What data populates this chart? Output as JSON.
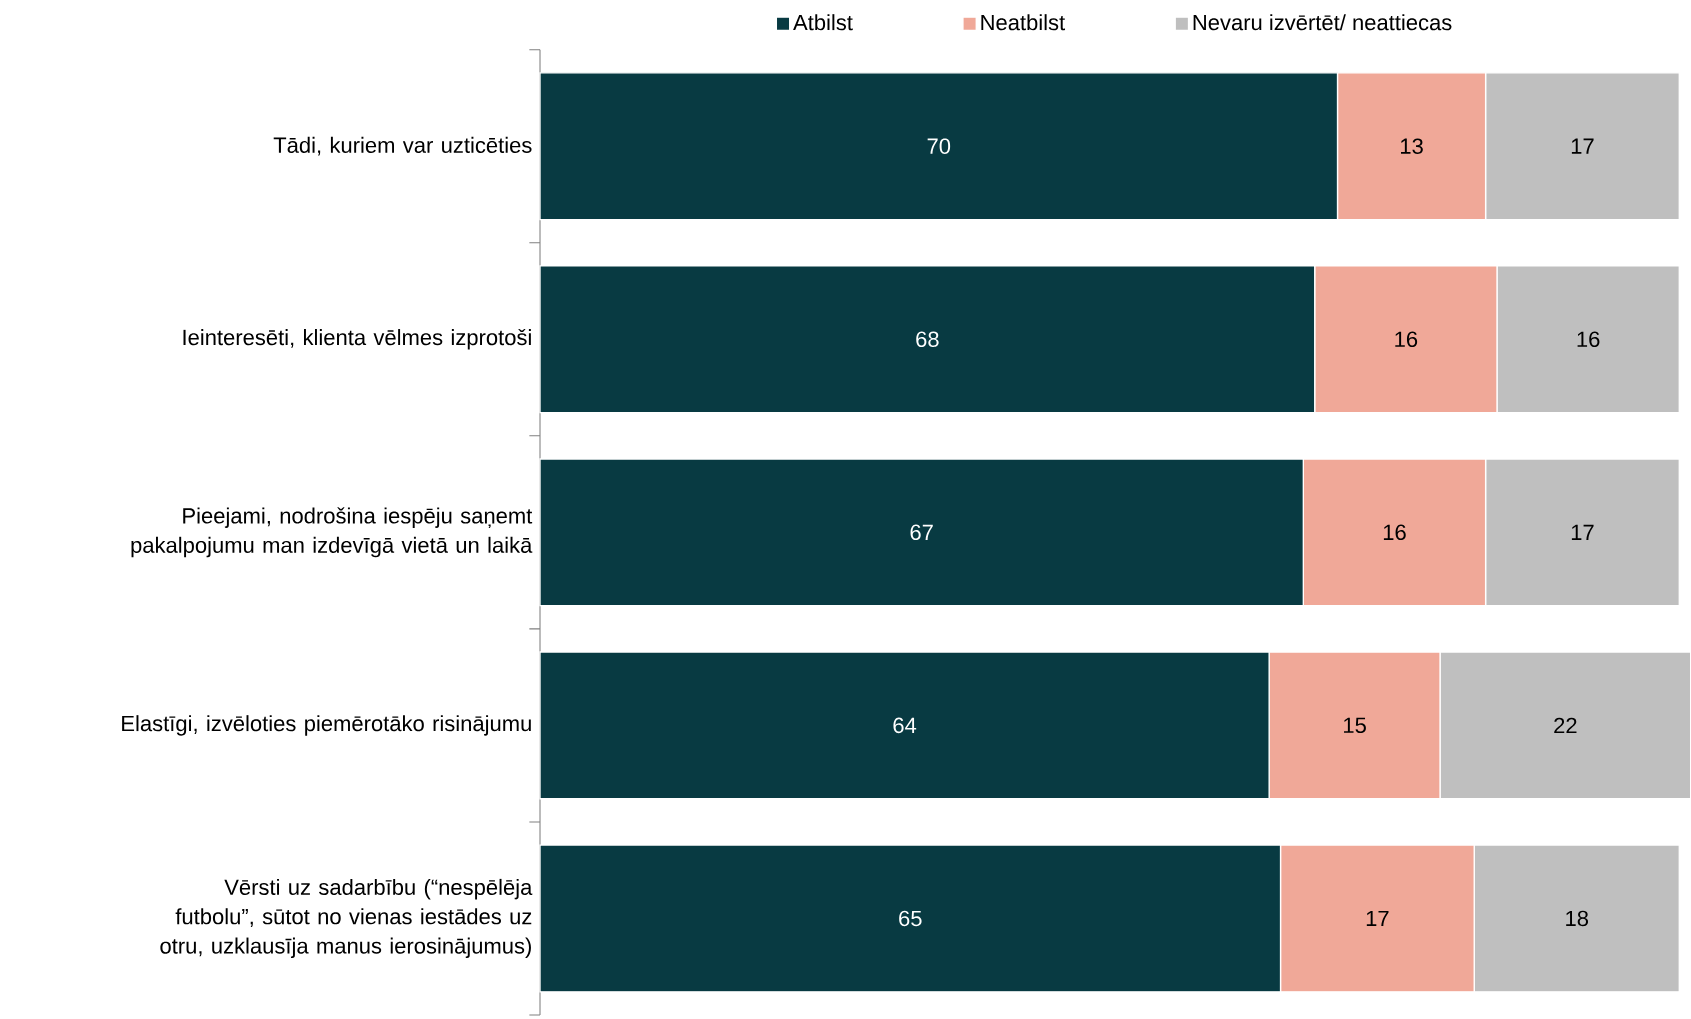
{
  "chart_data": {
    "type": "bar",
    "orientation": "horizontal",
    "stacked": true,
    "data_labels": true,
    "legend": "top",
    "categories": [
      "Tādi, kuriem var uzticēties",
      "Ieinteresēti, klienta vēlmes izprotoši",
      "Pieejami, nodrošina iespēju saņemt pakalpojumu man izdevīgā vietā un laikā",
      "Elastīgi, izvēloties piemērotāko risinājumu",
      "Vērsti uz sadarbību (“nespēlēja futbolu”, sūtot no vienas iestādes uz otru, uzklausīja manus ierosinājumus)"
    ],
    "series": [
      {
        "name": "Atbilst",
        "color": "#083a42",
        "values": [
          70,
          68,
          67,
          64,
          65
        ]
      },
      {
        "name": "Neatbilst",
        "color": "#f0a898",
        "values": [
          13,
          16,
          16,
          15,
          17
        ]
      },
      {
        "name": "Nevaru izvērtēt/ neattiecas",
        "color": "#bfbfbf",
        "values": [
          17,
          16,
          17,
          22,
          18
        ]
      }
    ]
  }
}
